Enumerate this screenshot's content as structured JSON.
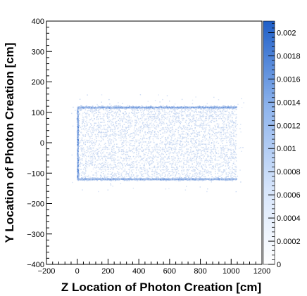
{
  "chart_data": {
    "type": "heatmap",
    "title": "",
    "xlabel": "Z Location of Photon Creation [cm]",
    "ylabel": "Y Location of Photon Creation [cm]",
    "xlim": [
      -200,
      1200
    ],
    "ylim": [
      -400,
      400
    ],
    "x_ticks": [
      -200,
      0,
      200,
      400,
      600,
      800,
      1000,
      1200
    ],
    "x_tick_labels": [
      "−200",
      "0",
      "200",
      "400",
      "600",
      "800",
      "1000",
      "1200"
    ],
    "y_ticks": [
      -400,
      -300,
      -200,
      -100,
      0,
      100,
      200,
      300,
      400
    ],
    "y_tick_labels": [
      "−400",
      "−300",
      "−200",
      "−100",
      "0",
      "100",
      "200",
      "300",
      "400"
    ],
    "colorbar": {
      "min": 0,
      "max": 0.0021,
      "ticks": [
        0,
        0.0002,
        0.0004,
        0.0006,
        0.0008,
        0.001,
        0.0012,
        0.0014,
        0.0016,
        0.0018,
        0.002
      ],
      "tick_labels": [
        "0",
        "0.0002",
        "0.0004",
        "0.0006",
        "0.0008",
        "0.001",
        "0.0012",
        "0.0014",
        "0.0016",
        "0.0018",
        "0.002"
      ],
      "color_low": "#ffffff",
      "color_high": "#1f5fc8"
    },
    "regions": [
      {
        "shape": "box_interior",
        "z_range": [
          0,
          1030
        ],
        "y_range": [
          -118,
          118
        ],
        "density": 0.0002
      },
      {
        "shape": "edge_top",
        "z_range": [
          0,
          1030
        ],
        "y": 118,
        "density": 0.0009
      },
      {
        "shape": "edge_bottom",
        "z_range": [
          0,
          1030
        ],
        "y": -118,
        "density": 0.0008
      },
      {
        "shape": "edge_left",
        "z": 0,
        "y_range": [
          -118,
          118
        ],
        "density": 0.0011
      }
    ],
    "grid": false,
    "legend": "colorbar-right"
  }
}
